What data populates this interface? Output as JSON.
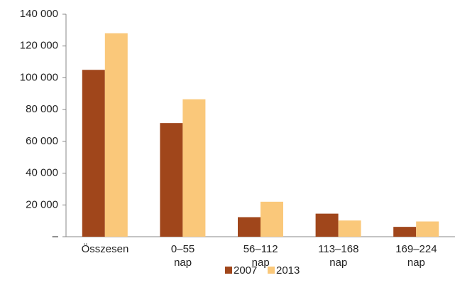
{
  "chart_data": {
    "type": "bar",
    "categories": [
      "Összesen",
      "0–55\nnap",
      "56–112\nnap",
      "113–168\nnap",
      "169–224\nnap"
    ],
    "series": [
      {
        "name": "2007",
        "color": "#a0461b",
        "values": [
          105000,
          71500,
          12300,
          14500,
          6200
        ]
      },
      {
        "name": "2013",
        "color": "#fac87a",
        "values": [
          128000,
          86500,
          22000,
          10200,
          9600
        ]
      }
    ],
    "ylim": [
      0,
      140000
    ],
    "yticks": [
      {
        "value": 0,
        "label": "–"
      },
      {
        "value": 20000,
        "label": "20 000"
      },
      {
        "value": 40000,
        "label": "40 000"
      },
      {
        "value": 60000,
        "label": "60 000"
      },
      {
        "value": 80000,
        "label": "80 000"
      },
      {
        "value": 100000,
        "label": "100 000"
      },
      {
        "value": 120000,
        "label": "120 000"
      },
      {
        "value": 140000,
        "label": "140 000"
      }
    ],
    "grid": false,
    "legend": "bottom"
  }
}
